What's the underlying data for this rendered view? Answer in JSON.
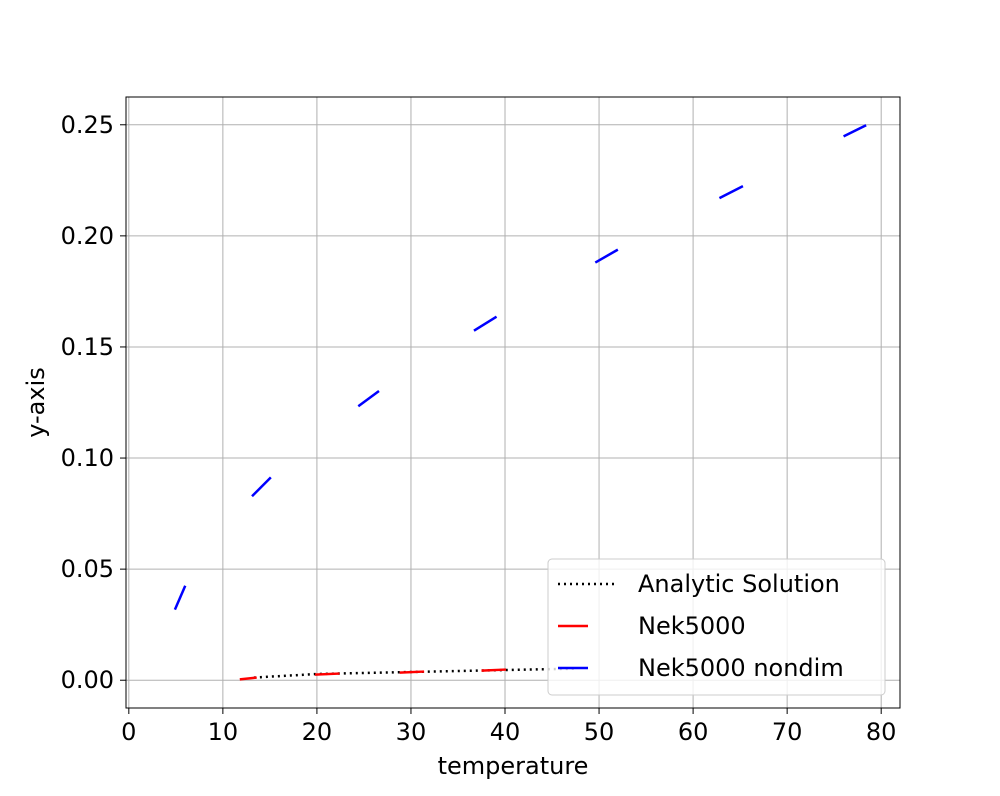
{
  "chart_data": {
    "type": "line",
    "title": "",
    "xlabel": "temperature",
    "ylabel": "y-axis",
    "xlim": [
      -0.3,
      82
    ],
    "ylim": [
      -0.0125,
      0.2625
    ],
    "xticks": [
      0,
      10,
      20,
      30,
      40,
      50,
      60,
      70,
      80
    ],
    "xtick_labels": [
      "0",
      "10",
      "20",
      "30",
      "40",
      "50",
      "60",
      "70",
      "80"
    ],
    "yticks": [
      0.0,
      0.05,
      0.1,
      0.15,
      0.2,
      0.25
    ],
    "ytick_labels": [
      "0.00",
      "0.05",
      "0.10",
      "0.15",
      "0.20",
      "0.25"
    ],
    "grid": true,
    "legend_position": "lower-right",
    "series": [
      {
        "name": "Analytic Solution",
        "color": "#000000",
        "style": "dotted",
        "x": [
          13.3,
          20,
          30,
          40,
          47.5
        ],
        "y": [
          0.0012,
          0.0028,
          0.0037,
          0.0046,
          0.0052
        ]
      },
      {
        "name": "Nek5000",
        "color": "#ff0000",
        "style": "dashed",
        "segments": [
          [
            [
              11.8,
              0.0004
            ],
            [
              13.6,
              0.0012
            ]
          ],
          [
            [
              19.8,
              0.0025
            ],
            [
              22.4,
              0.003
            ]
          ],
          [
            [
              28.8,
              0.0034
            ],
            [
              31.4,
              0.0039
            ]
          ],
          [
            [
              37.5,
              0.0043
            ],
            [
              40.1,
              0.0048
            ]
          ]
        ]
      },
      {
        "name": "Nek5000 nondim",
        "color": "#0000ff",
        "style": "dashed",
        "segments": [
          [
            [
              4.9,
              0.0318
            ],
            [
              6.0,
              0.0425
            ]
          ],
          [
            [
              13.1,
              0.0828
            ],
            [
              15.1,
              0.0913
            ]
          ],
          [
            [
              24.4,
              0.1233
            ],
            [
              26.6,
              0.1302
            ]
          ],
          [
            [
              36.7,
              0.1573
            ],
            [
              39.1,
              0.1636
            ]
          ],
          [
            [
              49.6,
              0.188
            ],
            [
              52.0,
              0.1938
            ]
          ],
          [
            [
              62.8,
              0.217
            ],
            [
              65.3,
              0.2224
            ]
          ],
          [
            [
              76.0,
              0.2448
            ],
            [
              78.4,
              0.2498
            ]
          ]
        ]
      }
    ]
  }
}
